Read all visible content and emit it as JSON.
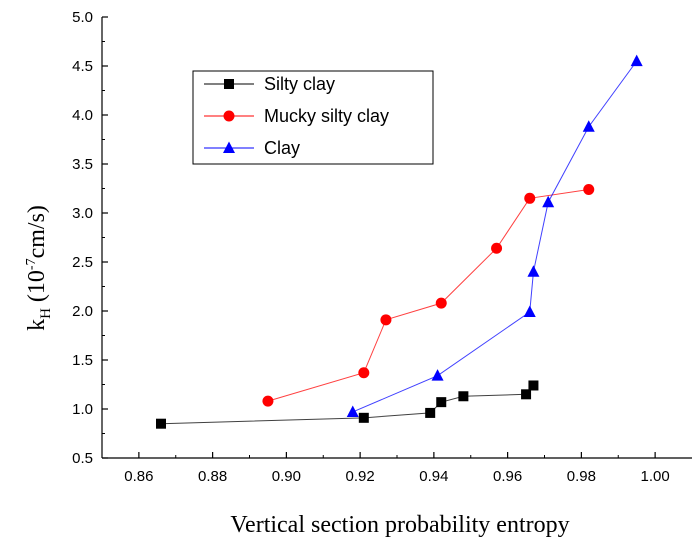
{
  "chart_data": {
    "type": "line",
    "xlabel": "Vertical section probability entropy",
    "ylabel": {
      "base": "k",
      "sub": "H",
      "paren_open": " (10",
      "exp": "-7",
      "unit": "cm/s)"
    },
    "xlim": [
      0.85,
      1.01
    ],
    "ylim": [
      0.5,
      5.0
    ],
    "x_ticks": [
      "0.86",
      "0.88",
      "0.90",
      "0.92",
      "0.94",
      "0.96",
      "0.98",
      "1.00"
    ],
    "y_ticks": [
      "0.5",
      "1.0",
      "1.5",
      "2.0",
      "2.5",
      "3.0",
      "3.5",
      "4.0",
      "4.5",
      "5.0"
    ],
    "grid": false,
    "legend_position": "top-left",
    "series": [
      {
        "name": "Silty clay",
        "color": "#000000",
        "marker": "square",
        "points": [
          [
            0.866,
            0.85
          ],
          [
            0.921,
            0.91
          ],
          [
            0.939,
            0.96
          ],
          [
            0.942,
            1.07
          ],
          [
            0.948,
            1.13
          ],
          [
            0.965,
            1.15
          ],
          [
            0.967,
            1.24
          ]
        ]
      },
      {
        "name": "Mucky silty clay",
        "color": "#ff0000",
        "marker": "circle",
        "points": [
          [
            0.895,
            1.08
          ],
          [
            0.921,
            1.37
          ],
          [
            0.927,
            1.91
          ],
          [
            0.942,
            2.08
          ],
          [
            0.957,
            2.64
          ],
          [
            0.966,
            3.15
          ],
          [
            0.982,
            3.24
          ]
        ]
      },
      {
        "name": "Clay",
        "color": "#0000ff",
        "marker": "triangle",
        "points": [
          [
            0.918,
            0.97
          ],
          [
            0.941,
            1.34
          ],
          [
            0.966,
            1.99
          ],
          [
            0.967,
            2.4
          ],
          [
            0.971,
            3.11
          ],
          [
            0.982,
            3.88
          ],
          [
            0.995,
            4.55
          ]
        ]
      }
    ]
  }
}
